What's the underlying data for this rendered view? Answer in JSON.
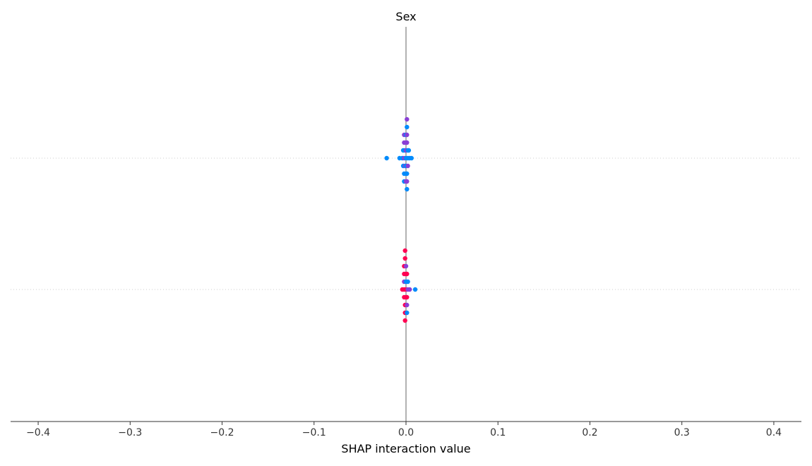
{
  "chart_data": {
    "type": "scatter",
    "subtype": "shap-interaction-beeswarm",
    "title": "Sex",
    "xlabel": "SHAP interaction value",
    "ylabel": "",
    "xlim": [
      -0.43,
      0.43
    ],
    "xticks": [
      -0.4,
      -0.3,
      -0.2,
      -0.1,
      0.0,
      0.1,
      0.2,
      0.3,
      0.4
    ],
    "xtick_labels": [
      "−0.4",
      "−0.3",
      "−0.2",
      "−0.1",
      "0.0",
      "0.1",
      "0.2",
      "0.3",
      "0.4"
    ],
    "grid": false,
    "row_gridlines": "dotted",
    "zero_line": true,
    "colors": {
      "low": "#008bfb",
      "mid": "#8a3fd6",
      "high": "#ff0052",
      "zero_line": "#999999",
      "axis": "#333333"
    },
    "rows": [
      {
        "points": [
          {
            "x": 0.001,
            "offset": -5,
            "color": "mid"
          },
          {
            "x": 0.001,
            "offset": -4,
            "color": "low"
          },
          {
            "x": -0.002,
            "offset": -3,
            "color": "mid"
          },
          {
            "x": 0.0,
            "offset": -3,
            "color": "low"
          },
          {
            "x": 0.001,
            "offset": -3,
            "color": "mid"
          },
          {
            "x": -0.002,
            "offset": -2,
            "color": "mid"
          },
          {
            "x": 0.0,
            "offset": -2,
            "color": "mid"
          },
          {
            "x": 0.001,
            "offset": -2,
            "color": "mid"
          },
          {
            "x": -0.003,
            "offset": -1,
            "color": "low"
          },
          {
            "x": -0.001,
            "offset": -1,
            "color": "low"
          },
          {
            "x": 0.0,
            "offset": -1,
            "color": "mid"
          },
          {
            "x": 0.002,
            "offset": -1,
            "color": "low"
          },
          {
            "x": 0.003,
            "offset": -1,
            "color": "low"
          },
          {
            "x": -0.021,
            "offset": 0,
            "color": "low"
          },
          {
            "x": -0.007,
            "offset": 0,
            "color": "low"
          },
          {
            "x": -0.004,
            "offset": 0,
            "color": "low"
          },
          {
            "x": -0.002,
            "offset": 0,
            "color": "mid"
          },
          {
            "x": 0.0,
            "offset": 0,
            "color": "low"
          },
          {
            "x": 0.002,
            "offset": 0,
            "color": "low"
          },
          {
            "x": 0.004,
            "offset": 0,
            "color": "low"
          },
          {
            "x": 0.006,
            "offset": 0,
            "color": "low"
          },
          {
            "x": -0.003,
            "offset": 1,
            "color": "low"
          },
          {
            "x": -0.001,
            "offset": 1,
            "color": "mid"
          },
          {
            "x": 0.0,
            "offset": 1,
            "color": "low"
          },
          {
            "x": 0.002,
            "offset": 1,
            "color": "mid"
          },
          {
            "x": -0.002,
            "offset": 2,
            "color": "low"
          },
          {
            "x": 0.0,
            "offset": 2,
            "color": "low"
          },
          {
            "x": 0.001,
            "offset": 2,
            "color": "low"
          },
          {
            "x": -0.002,
            "offset": 3,
            "color": "low"
          },
          {
            "x": 0.0,
            "offset": 3,
            "color": "mid"
          },
          {
            "x": 0.001,
            "offset": 3,
            "color": "mid"
          },
          {
            "x": 0.001,
            "offset": 4,
            "color": "low"
          }
        ]
      },
      {
        "points": [
          {
            "x": -0.001,
            "offset": -5,
            "color": "high"
          },
          {
            "x": -0.001,
            "offset": -4,
            "color": "high"
          },
          {
            "x": -0.002,
            "offset": -3,
            "color": "high"
          },
          {
            "x": 0.0,
            "offset": -3,
            "color": "mid"
          },
          {
            "x": -0.002,
            "offset": -2,
            "color": "high"
          },
          {
            "x": 0.0,
            "offset": -2,
            "color": "high"
          },
          {
            "x": 0.001,
            "offset": -2,
            "color": "high"
          },
          {
            "x": -0.002,
            "offset": -1,
            "color": "mid"
          },
          {
            "x": 0.0,
            "offset": -1,
            "color": "low"
          },
          {
            "x": 0.002,
            "offset": -1,
            "color": "low"
          },
          {
            "x": -0.004,
            "offset": 0,
            "color": "high"
          },
          {
            "x": -0.002,
            "offset": 0,
            "color": "high"
          },
          {
            "x": 0.0,
            "offset": 0,
            "color": "high"
          },
          {
            "x": 0.002,
            "offset": 0,
            "color": "mid"
          },
          {
            "x": 0.004,
            "offset": 0,
            "color": "mid"
          },
          {
            "x": 0.01,
            "offset": 0,
            "color": "low"
          },
          {
            "x": -0.002,
            "offset": 1,
            "color": "high"
          },
          {
            "x": 0.0,
            "offset": 1,
            "color": "high"
          },
          {
            "x": 0.001,
            "offset": 1,
            "color": "high"
          },
          {
            "x": -0.001,
            "offset": 2,
            "color": "high"
          },
          {
            "x": 0.001,
            "offset": 2,
            "color": "mid"
          },
          {
            "x": -0.001,
            "offset": 3,
            "color": "high"
          },
          {
            "x": 0.001,
            "offset": 3,
            "color": "low"
          },
          {
            "x": -0.001,
            "offset": 4,
            "color": "high"
          }
        ]
      }
    ]
  }
}
